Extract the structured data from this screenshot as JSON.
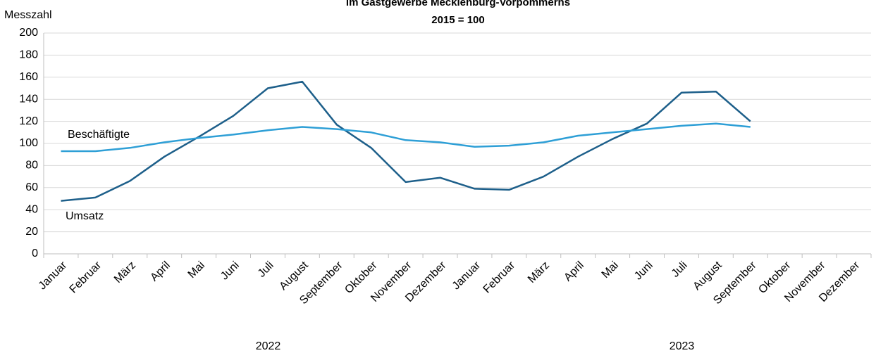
{
  "chart_data": {
    "type": "line",
    "title": "im Gastgewerbe Mecklenburg-Vorpommerns",
    "subtitle": "2015 = 100",
    "y_label": "Messzahl",
    "categories": [
      "Januar",
      "Februar",
      "März",
      "April",
      "Mai",
      "Juni",
      "Juli",
      "August",
      "September",
      "Oktober",
      "November",
      "Dezember",
      "Januar",
      "Februar",
      "März",
      "April",
      "Mai",
      "Juni",
      "Juli",
      "August",
      "September",
      "Oktober",
      "November",
      "Dezember"
    ],
    "years": [
      "2022",
      "2023"
    ],
    "series": [
      {
        "name": "Umsatz",
        "color": "#1d5f8a",
        "values": [
          48,
          51,
          66,
          88,
          106,
          125,
          150,
          156,
          117,
          96,
          65,
          69,
          59,
          58,
          70,
          88,
          104,
          118,
          146,
          147,
          120,
          null,
          null,
          null
        ]
      },
      {
        "name": "Beschäftigte",
        "color": "#2e9fd6",
        "values": [
          93,
          93,
          96,
          101,
          105,
          108,
          112,
          115,
          113,
          110,
          103,
          101,
          97,
          98,
          101,
          107,
          110,
          113,
          116,
          118,
          115,
          null,
          null,
          null
        ]
      }
    ],
    "ylim": [
      0,
      200
    ],
    "yticks": [
      0,
      20,
      40,
      60,
      80,
      100,
      120,
      140,
      160,
      180,
      200
    ],
    "grid": true
  }
}
